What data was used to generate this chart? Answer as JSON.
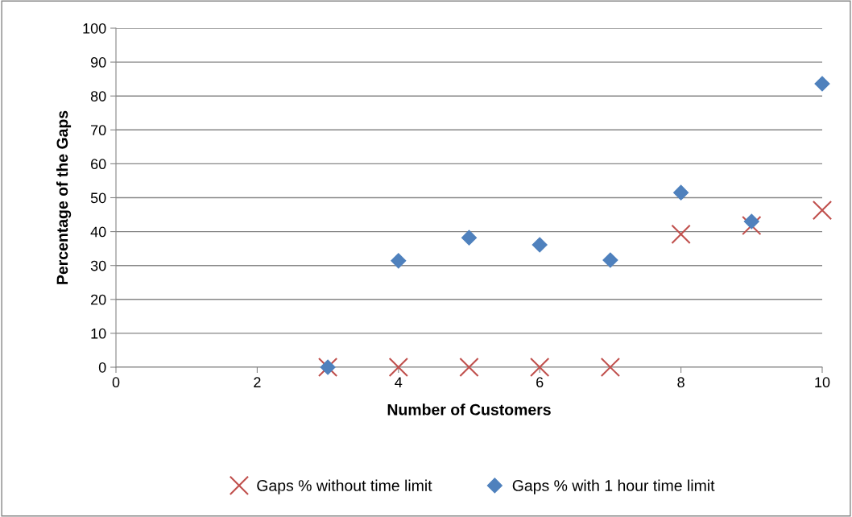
{
  "chart_data": {
    "type": "scatter",
    "xlabel": "Number of Customers",
    "ylabel": "Percentage of the Gaps",
    "xlim": [
      0,
      10
    ],
    "xticks": [
      0,
      2,
      4,
      6,
      8,
      10
    ],
    "ylim": [
      0,
      100
    ],
    "yticks": [
      0,
      10,
      20,
      30,
      40,
      50,
      60,
      70,
      80,
      90,
      100
    ],
    "grid": "y",
    "legend": "bottom",
    "series": [
      {
        "name": "Gaps % without time limit",
        "color": "#c0504d",
        "marker": "cross",
        "x": [
          3,
          4,
          5,
          6,
          7,
          8,
          9,
          10
        ],
        "values": [
          0,
          0,
          0,
          0,
          0,
          39.2,
          41.8,
          46.3
        ]
      },
      {
        "name": "Gaps % with 1 hour time limit",
        "color": "#4f81bd",
        "marker": "diamond",
        "x": [
          3,
          4,
          5,
          6,
          7,
          8,
          9,
          10
        ],
        "values": [
          0,
          31.4,
          38.2,
          36.1,
          31.6,
          51.5,
          43.0,
          83.6
        ]
      }
    ]
  }
}
